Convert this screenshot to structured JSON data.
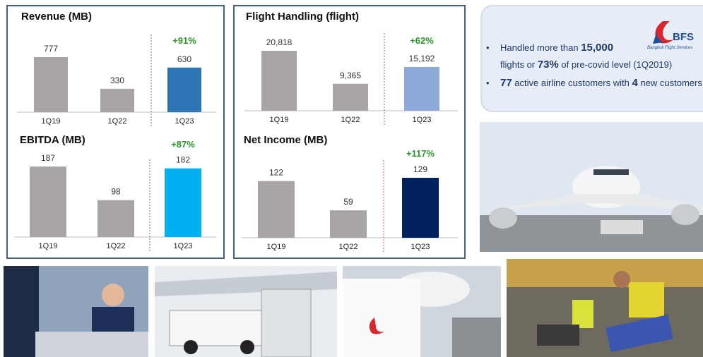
{
  "chart_data": [
    {
      "type": "bar",
      "title": "Revenue (MB)",
      "categories": [
        "1Q19",
        "1Q22",
        "1Q23"
      ],
      "values": [
        777,
        330,
        630
      ],
      "colors": [
        "#a8a5a4",
        "#a8a5a4",
        "#2e75b6"
      ],
      "annotation": "+91%"
    },
    {
      "type": "bar",
      "title": "Flight Handling (flight)",
      "categories": [
        "1Q19",
        "1Q22",
        "1Q23"
      ],
      "values": [
        20818,
        9365,
        15192
      ],
      "value_labels": [
        "20,818",
        "9,365",
        "15,192"
      ],
      "colors": [
        "#a8a5a4",
        "#a8a5a4",
        "#8eaadb"
      ],
      "annotation": "+62%"
    },
    {
      "type": "bar",
      "title": "EBITDA  (MB)",
      "categories": [
        "1Q19",
        "1Q22",
        "1Q23"
      ],
      "values": [
        187,
        98,
        182
      ],
      "colors": [
        "#a8a5a4",
        "#a8a5a4",
        "#00b0f0"
      ],
      "annotation": "+87%"
    },
    {
      "type": "bar",
      "title": "Net Income  (MB)",
      "categories": [
        "1Q19",
        "1Q22",
        "1Q23"
      ],
      "values": [
        122,
        59,
        129
      ],
      "colors": [
        "#a8a5a4",
        "#a8a5a4",
        "#002060"
      ],
      "annotation": "+117%"
    }
  ],
  "info_box": {
    "logo": "BFS",
    "logo_caption": "Bangkok Flight Services",
    "bullet_1": {
      "text_1": "Handled more than ",
      "number_1": "15,000",
      "text_2": "flights or ",
      "number_2": "73%",
      "text_3": " of pre-covid level (1Q2019)"
    },
    "bullet_2": {
      "number_1": "77",
      "text_1": " active airline customers with ",
      "number_2": "4",
      "text_2": " new customers"
    }
  }
}
